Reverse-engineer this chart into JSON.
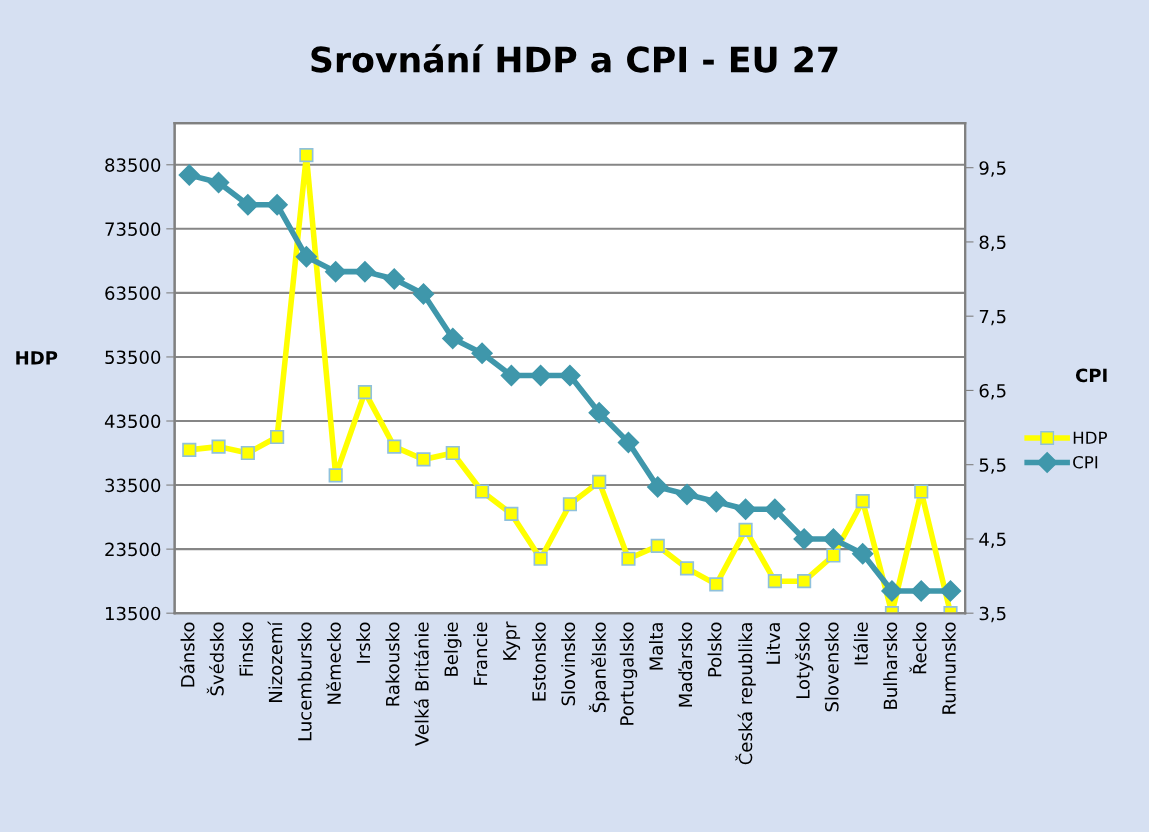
{
  "chart_data": {
    "type": "line",
    "title": "Srovnání HDP a CPI - EU 27",
    "ylabel": "HDP",
    "y2label": "CPI",
    "categories": [
      "Dánsko",
      "Švédsko",
      "Finsko",
      "Nizozemí",
      "Lucembursko",
      "Německo",
      "Irsko",
      "Rakousko",
      "Velká Británie",
      "Belgie",
      "Francie",
      "Kypr",
      "Estonsko",
      "Slovinsko",
      "Španělsko",
      "Portugalsko",
      "Malta",
      "Maďarsko",
      "Polsko",
      "Česká republika",
      "Litva",
      "Lotyšsko",
      "Slovensko",
      "Itálie",
      "Bulharsko",
      "Řecko",
      "Rumunsko"
    ],
    "series": [
      {
        "name": "HDP",
        "color": "#ffff00",
        "marker": "square",
        "values": [
          39000,
          39500,
          38500,
          41000,
          85000,
          35000,
          48000,
          39500,
          37500,
          38500,
          32500,
          29000,
          22000,
          30500,
          34000,
          22000,
          24000,
          20500,
          18000,
          26500,
          18500,
          18500,
          22500,
          31000,
          13500,
          32500,
          13500
        ]
      },
      {
        "name": "CPI",
        "color": "#3f97ab",
        "marker": "diamond",
        "axis": "y2",
        "values": [
          9.4,
          9.3,
          9.0,
          9.0,
          8.3,
          8.1,
          8.1,
          8.0,
          7.8,
          7.2,
          7.0,
          6.7,
          6.7,
          6.7,
          6.2,
          5.8,
          5.2,
          5.1,
          5.0,
          4.9,
          4.9,
          4.5,
          4.5,
          4.3,
          3.8,
          3.8,
          3.8
        ]
      }
    ],
    "ylim": [
      13500,
      90000
    ],
    "yticks": [
      13500,
      23500,
      33500,
      43500,
      53500,
      63500,
      73500,
      83500
    ],
    "y2lim": [
      3.5,
      10.1
    ],
    "y2ticks": [
      {
        "value": 3.5,
        "label": "3,5"
      },
      {
        "value": 4.5,
        "label": "4,5"
      },
      {
        "value": 5.5,
        "label": "5,5"
      },
      {
        "value": 6.5,
        "label": "6,5"
      },
      {
        "value": 7.5,
        "label": "7,5"
      },
      {
        "value": 8.5,
        "label": "8,5"
      },
      {
        "value": 9.5,
        "label": "9,5"
      }
    ],
    "grid": "y",
    "legend": "right"
  }
}
